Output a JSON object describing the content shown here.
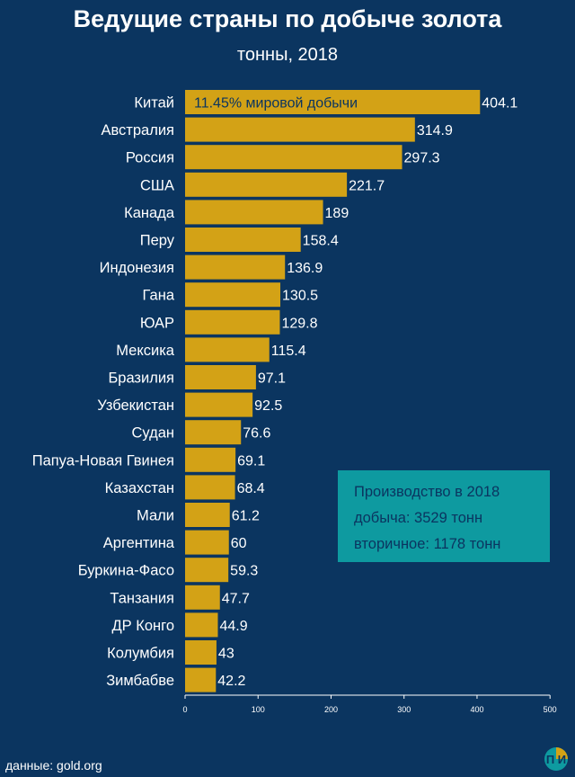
{
  "chart_data": {
    "type": "bar",
    "orientation": "horizontal",
    "title": "Ведущие страны по добыче золота",
    "subtitle": "тонны, 2018",
    "categories": [
      "Китай",
      "Австралия",
      "Россия",
      "США",
      "Канада",
      "Перу",
      "Индонезия",
      "Гана",
      "ЮАР",
      "Мексика",
      "Бразилия",
      "Узбекистан",
      "Судан",
      "Папуа-Новая Гвинея",
      "Казахстан",
      "Мали",
      "Аргентина",
      "Буркина-Фасо",
      "Танзания",
      "ДР Конго",
      "Колумбия",
      "Зимбабве"
    ],
    "values": [
      404.1,
      314.9,
      297.3,
      221.7,
      189,
      158.4,
      136.9,
      130.5,
      129.8,
      115.4,
      97.1,
      92.5,
      76.6,
      69.1,
      68.4,
      61.2,
      60,
      59.3,
      47.7,
      44.9,
      43,
      42.2
    ],
    "value_labels": [
      "404.1",
      "314.9",
      "297.3",
      "221.7",
      "189",
      "158.4",
      "136.9",
      "130.5",
      "129.8",
      "115.4",
      "97.1",
      "92.5",
      "76.6",
      "69.1",
      "68.4",
      "61.2",
      "60",
      "59.3",
      "47.7",
      "44.9",
      "43",
      "42.2"
    ],
    "xlim": [
      0,
      500
    ],
    "x_ticks": [
      "0",
      "100",
      "200",
      "300",
      "400",
      "500"
    ],
    "grid": false,
    "annotation": "11.45% мировой добычи",
    "colors": {
      "bar": "#d3a216",
      "background": "#0b3560",
      "infobox": "#0e9aa0"
    }
  },
  "infobox": {
    "title": "Производство в 2018",
    "line1": "добыча: 3529 тонн",
    "line2": "вторичное: 1178 тонн"
  },
  "source": "данные: gold.org",
  "logo": {
    "text": "П И",
    "icon": "logo-icon"
  }
}
